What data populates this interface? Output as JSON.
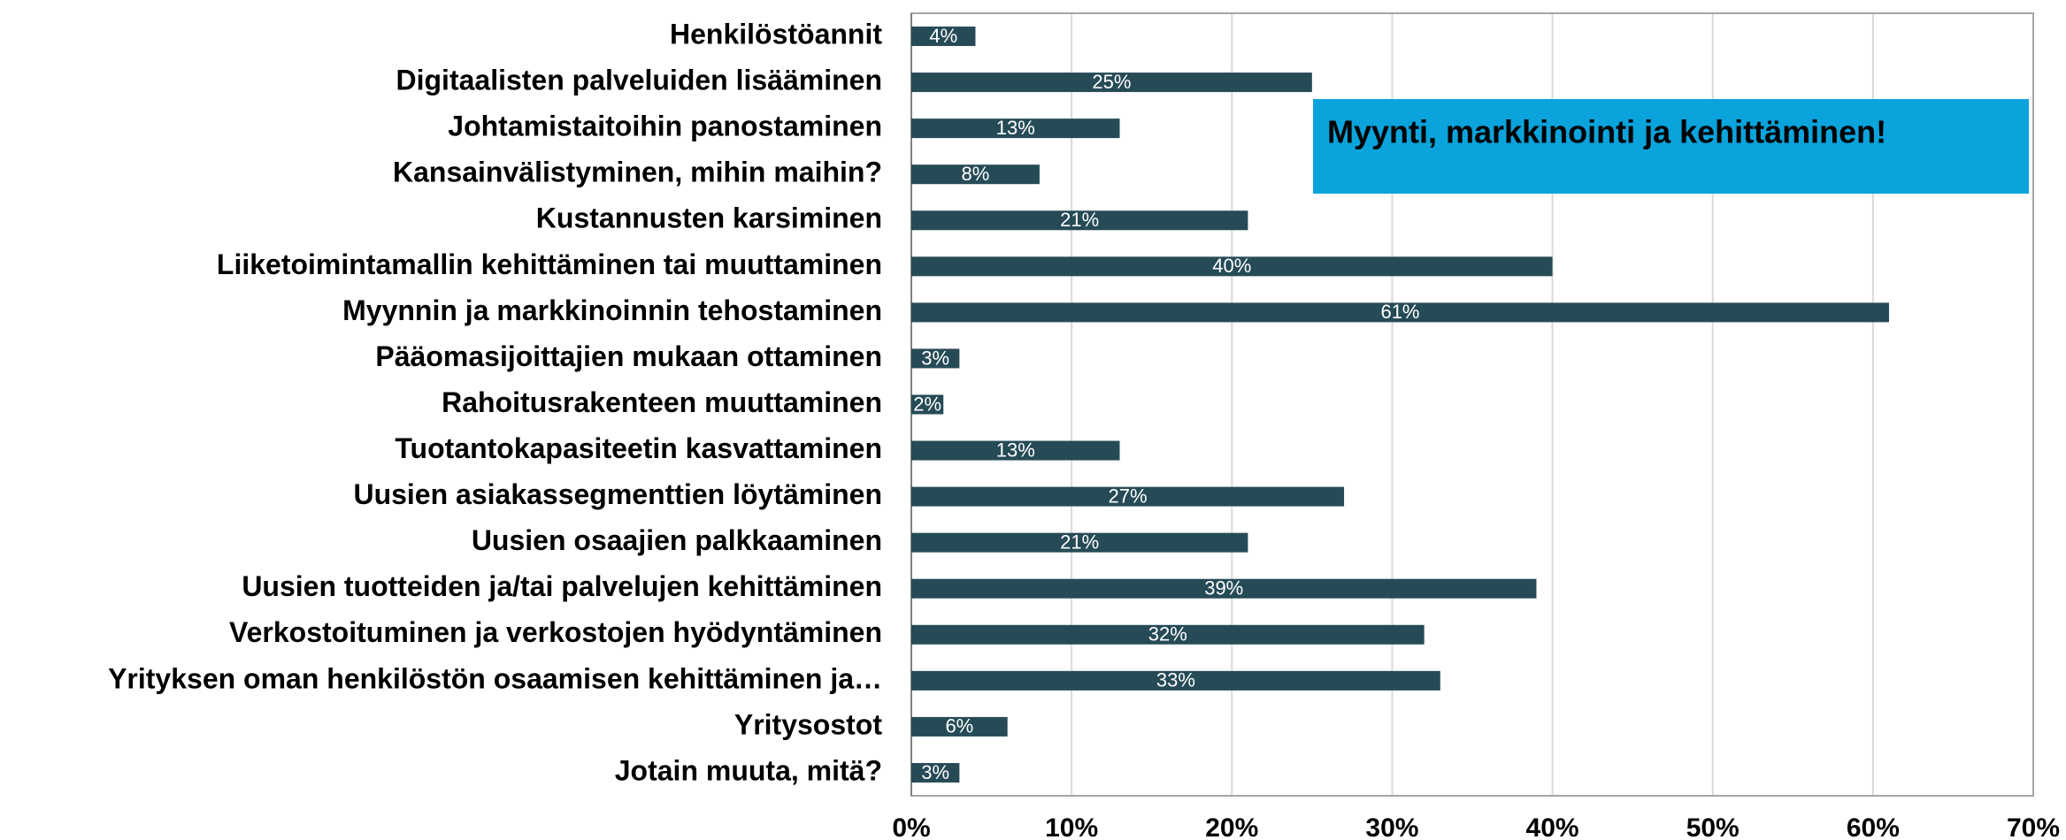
{
  "chart_data": {
    "type": "barh",
    "categories": [
      "Henkilöstöannit",
      "Digitaalisten palveluiden lisääminen",
      "Johtamistaitoihin panostaminen",
      "Kansainvälistyminen, mihin maihin?",
      "Kustannusten karsiminen",
      "Liiketoimintamallin kehittäminen tai muuttaminen",
      "Myynnin ja markkinoinnin tehostaminen",
      "Pääomasijoittajien mukaan ottaminen",
      "Rahoitusrakenteen muuttaminen",
      "Tuotantokapasiteetin kasvattaminen",
      "Uusien asiakassegmenttien löytäminen",
      "Uusien osaajien palkkaaminen",
      "Uusien tuotteiden ja/tai palvelujen kehittäminen",
      "Verkostoituminen ja verkostojen hyödyntäminen",
      "Yrityksen oman henkilöstön osaamisen kehittäminen ja…",
      "Yritysostot",
      "Jotain muuta, mitä?"
    ],
    "values": [
      4,
      25,
      13,
      8,
      21,
      40,
      61,
      3,
      2,
      13,
      27,
      21,
      39,
      32,
      33,
      6,
      3
    ],
    "value_labels": [
      "4%",
      "25%",
      "13%",
      "8%",
      "21%",
      "40%",
      "61%",
      "3%",
      "2%",
      "13%",
      "27%",
      "21%",
      "39%",
      "32%",
      "33%",
      "6%",
      "3%"
    ],
    "color": "#264b57",
    "xlim": [
      0,
      70
    ],
    "xticks": [
      {
        "value": 0,
        "label": "0%"
      },
      {
        "value": 10,
        "label": "10%"
      },
      {
        "value": 20,
        "label": "20%"
      },
      {
        "value": 30,
        "label": "30%"
      },
      {
        "value": 40,
        "label": "40%"
      },
      {
        "value": 50,
        "label": "50%"
      },
      {
        "value": 60,
        "label": "60%"
      },
      {
        "value": 70,
        "label": "70%"
      }
    ],
    "grid": true,
    "annotation": "Myynti, markkinointi ja kehittäminen!"
  }
}
